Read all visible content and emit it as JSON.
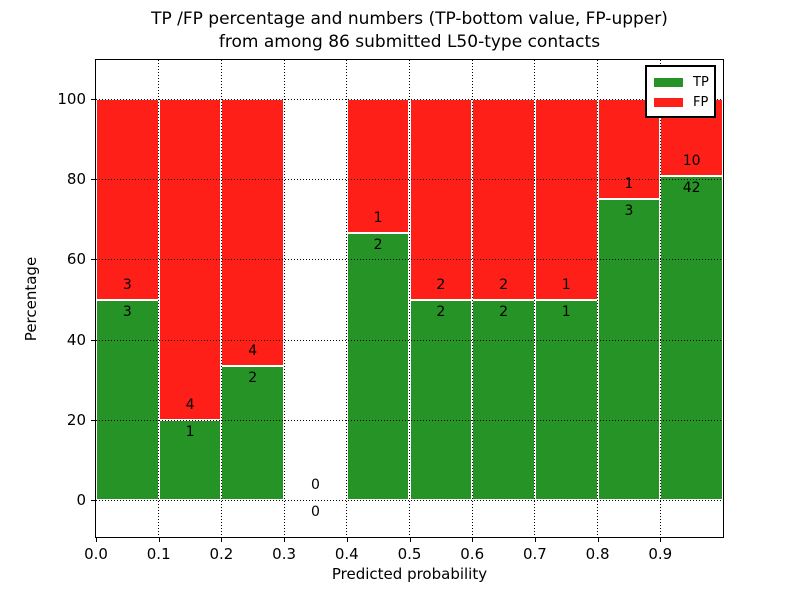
{
  "title": {
    "line1": "TP /FP percentage and numbers (TP-bottom value, FP-upper)",
    "line2": "from among 86 submitted L50-type contacts"
  },
  "axes": {
    "xlabel": "Predicted probability",
    "ylabel": "Percentage",
    "x_ticks": [
      {
        "value": 0.0,
        "label": "0.0"
      },
      {
        "value": 0.1,
        "label": "0.1"
      },
      {
        "value": 0.2,
        "label": "0.2"
      },
      {
        "value": 0.3,
        "label": "0.3"
      },
      {
        "value": 0.4,
        "label": "0.4"
      },
      {
        "value": 0.5,
        "label": "0.5"
      },
      {
        "value": 0.6,
        "label": "0.6"
      },
      {
        "value": 0.7,
        "label": "0.7"
      },
      {
        "value": 0.8,
        "label": "0.8"
      },
      {
        "value": 0.9,
        "label": "0.9"
      }
    ],
    "y_ticks": [
      {
        "value": 0,
        "label": "0"
      },
      {
        "value": 20,
        "label": "20"
      },
      {
        "value": 40,
        "label": "40"
      },
      {
        "value": 60,
        "label": "60"
      },
      {
        "value": 80,
        "label": "80"
      },
      {
        "value": 100,
        "label": "100"
      }
    ]
  },
  "legend": {
    "items": [
      {
        "label": "TP",
        "color": "#269326"
      },
      {
        "label": "FP",
        "color": "#ff1f19"
      }
    ]
  },
  "colors": {
    "tp": "#269326",
    "fp": "#ff1f19",
    "bar_edge": "#ffffff",
    "grid": "#000000",
    "text": "#000000"
  },
  "chart_data": {
    "type": "bar",
    "subtype": "stacked-percentage-histogram",
    "title": "TP /FP percentage and numbers (TP-bottom value, FP-upper) from among 86 submitted L50-type contacts",
    "xlabel": "Predicted probability",
    "ylabel": "Percentage",
    "xlim": [
      0.0,
      1.0
    ],
    "ylim": [
      -9,
      110
    ],
    "grid": "dotted",
    "legend_position": "upper right",
    "categories": [
      "0.0-0.1",
      "0.1-0.2",
      "0.2-0.3",
      "0.3-0.4",
      "0.4-0.5",
      "0.5-0.6",
      "0.6-0.7",
      "0.7-0.8",
      "0.8-0.9",
      "0.9-1.0"
    ],
    "bin_edges": [
      0.0,
      0.1,
      0.2,
      0.3,
      0.4,
      0.5,
      0.6,
      0.7,
      0.8,
      0.9,
      1.0
    ],
    "series": [
      {
        "name": "TP",
        "color": "#269326",
        "values": [
          3,
          1,
          2,
          0,
          2,
          2,
          2,
          1,
          3,
          42
        ]
      },
      {
        "name": "FP",
        "color": "#ff1f19",
        "values": [
          3,
          4,
          4,
          0,
          1,
          2,
          2,
          1,
          1,
          10
        ]
      }
    ],
    "tp_percent_per_bin": [
      50.0,
      20.0,
      33.33,
      null,
      66.67,
      50.0,
      50.0,
      50.0,
      75.0,
      80.77
    ]
  }
}
